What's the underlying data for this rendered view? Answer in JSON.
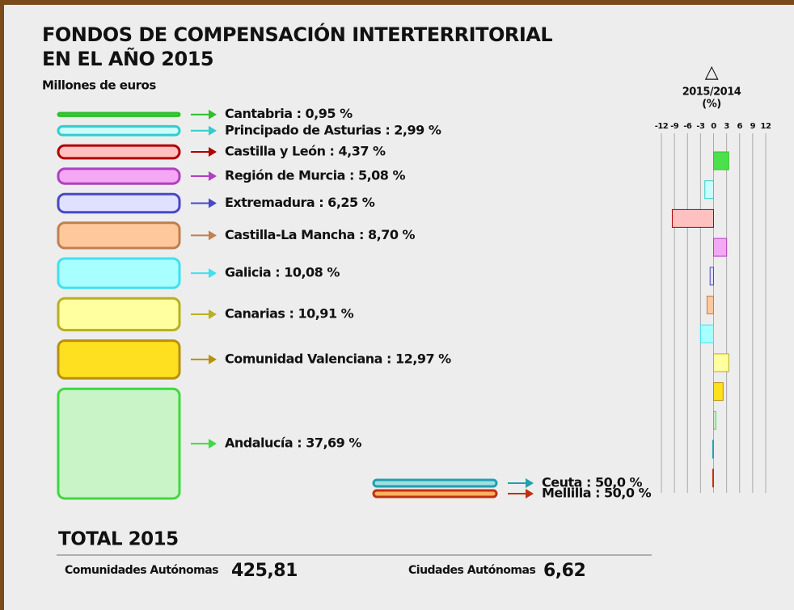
{
  "title_lines": [
    "FONDOS DE COMPENSACIÓN INTERTERRITORIAL",
    "EN EL AÑO 2015"
  ],
  "subtitle": "Millones de euros",
  "chart_data": [
    {
      "type": "boxes",
      "categories": [
        "Cantabria : 0,95 %",
        "Principado de Asturias : 2,99 %",
        "Castilla y León : 4,37 %",
        "Región de Murcia : 5,08 %",
        "Extremadura : 6,25 %",
        "Castilla-La Mancha : 8,70 %",
        "Galicia : 10,08 %",
        "Canarias : 10,91 %",
        "Comunidad Valenciana : 12,97 %",
        "Andalucía : 37,69 %"
      ],
      "values": [
        0.95,
        2.99,
        4.37,
        5.08,
        6.25,
        8.7,
        10.08,
        10.91,
        12.97,
        37.69
      ],
      "colors": [
        "#55e055",
        "#c8ffff",
        "#ffc0c0",
        "#f4a8f4",
        "#e0e0ff",
        "#ffc89c",
        "#a8ffff",
        "#ffffa0",
        "#ffe020",
        "#c8f4c8"
      ],
      "strokes": [
        "#2fbf2f",
        "#33cccc",
        "#b00000",
        "#b040c0",
        "#4848c8",
        "#c08050",
        "#40e0f0",
        "#b8b020",
        "#b89010",
        "#40d840"
      ]
    },
    {
      "type": "boxes",
      "categories": [
        "Ceuta : 50,0 %",
        "Mellilla : 50,0 %"
      ],
      "values": [
        50.0,
        50.0
      ],
      "colors": [
        "#a0e0e0",
        "#ffb060"
      ],
      "strokes": [
        "#20a0b0",
        "#c03010"
      ]
    },
    {
      "type": "hbar",
      "symbol": "△",
      "title": "2015/2014",
      "subtitle": "(%)",
      "values": [
        3.5,
        -2,
        -9.5,
        3,
        -0.8,
        -1.5,
        -3,
        3.5,
        2.2,
        0.5,
        -0.2,
        -0.2
      ],
      "colors": [
        "#4de04d",
        "#c8ffff",
        "#ffc0c0",
        "#f4a8f4",
        "#e0e0ff",
        "#ffc89c",
        "#a8ffff",
        "#ffffa0",
        "#ffe020",
        "#c8f4c8",
        "#a0e0e0",
        "#ffb060"
      ],
      "strokes": [
        "#2fbf2f",
        "#33cccc",
        "#b00000",
        "#b040c0",
        "#4848c8",
        "#c08050",
        "#40e0f0",
        "#b8b020",
        "#b89010",
        "#40d840",
        "#20a0b0",
        "#c03010"
      ],
      "xlim": [
        -12,
        12
      ],
      "xticks": [
        -12,
        -9,
        -6,
        -3,
        0,
        3,
        6,
        9,
        12
      ]
    }
  ],
  "total": {
    "title": "TOTAL 2015",
    "items": [
      {
        "label": "Comunidades Autónomas",
        "value": "425,81"
      },
      {
        "label": "Ciudades Autónomas",
        "value": "6,62"
      }
    ]
  }
}
